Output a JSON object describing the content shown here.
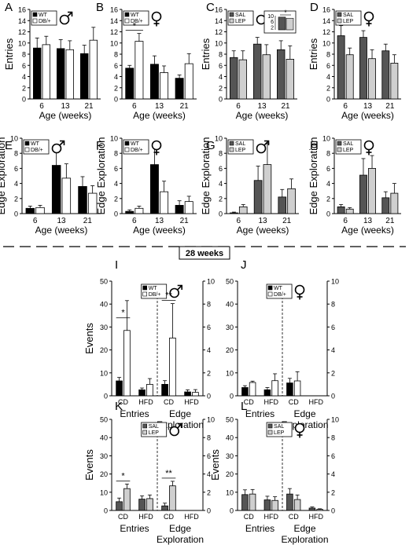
{
  "divider_label": "28 weeks",
  "chart_data": [
    {
      "id": "A",
      "type": "bar",
      "panel_label": "A",
      "ylabel": "Entries",
      "xlabel": "Age (weeks)",
      "categories": [
        "6",
        "13",
        "21"
      ],
      "ylim": [
        0,
        16
      ],
      "yticks": [
        0,
        2,
        4,
        6,
        8,
        10,
        12,
        14,
        16
      ],
      "legend": [
        "WT",
        "DB/+"
      ],
      "sex": "male",
      "series": [
        {
          "name": "WT",
          "values": [
            9.1,
            9.0,
            8.1
          ],
          "errors": [
            1.8,
            1.6,
            1.5
          ]
        },
        {
          "name": "DB/+",
          "values": [
            9.7,
            8.8,
            10.5
          ],
          "errors": [
            1.5,
            1.6,
            2.3
          ]
        }
      ]
    },
    {
      "id": "B",
      "type": "bar",
      "panel_label": "B",
      "ylabel": "",
      "xlabel": "Age (weeks)",
      "categories": [
        "6",
        "13",
        "21"
      ],
      "ylim": [
        0,
        16
      ],
      "yticks": [
        0,
        2,
        4,
        6,
        8,
        10,
        12,
        14,
        16
      ],
      "legend": [
        "WT",
        "DB/+"
      ],
      "sex": "female",
      "series": [
        {
          "name": "WT",
          "values": [
            5.5,
            6.2,
            3.7
          ],
          "errors": [
            0.5,
            1.5,
            0.6
          ]
        },
        {
          "name": "DB/+",
          "values": [
            10.3,
            4.7,
            6.3
          ],
          "errors": [
            1.4,
            1.2,
            1.8
          ]
        }
      ],
      "annotations": [
        {
          "text": "*",
          "between": "6"
        }
      ]
    },
    {
      "id": "C",
      "type": "bar",
      "panel_label": "C",
      "ylabel": "Entries",
      "xlabel": "Age (weeks)",
      "categories": [
        "6",
        "13",
        "21"
      ],
      "ylim": [
        0,
        16
      ],
      "yticks": [
        0,
        2,
        4,
        6,
        8,
        10,
        12,
        14,
        16
      ],
      "legend": [
        "SAL",
        "LEP"
      ],
      "sex": "male",
      "series": [
        {
          "name": "SAL",
          "values": [
            7.4,
            9.8,
            8.8
          ],
          "errors": [
            1.2,
            1.2,
            1.6
          ]
        },
        {
          "name": "LEP",
          "values": [
            7.0,
            7.9,
            7.1
          ],
          "errors": [
            1.6,
            1.8,
            2.4
          ]
        }
      ],
      "inset": {
        "yticks": [
          2,
          6,
          10
        ],
        "ylim": [
          0,
          10
        ],
        "values": [
          9.0,
          8.2
        ],
        "annotation": "*"
      }
    },
    {
      "id": "D",
      "type": "bar",
      "panel_label": "D",
      "ylabel": "Entries",
      "xlabel": "Age (weeks)",
      "categories": [
        "6",
        "13",
        "21"
      ],
      "ylim": [
        0,
        16
      ],
      "yticks": [
        0,
        2,
        4,
        6,
        8,
        10,
        12,
        14,
        16
      ],
      "legend": [
        "SAL",
        "LEP"
      ],
      "sex": "female",
      "series": [
        {
          "name": "SAL",
          "values": [
            11.3,
            11.0,
            8.6
          ],
          "errors": [
            1.8,
            1.2,
            1.2
          ]
        },
        {
          "name": "LEP",
          "values": [
            7.9,
            7.2,
            6.4
          ],
          "errors": [
            1.2,
            1.6,
            1.5
          ]
        }
      ]
    },
    {
      "id": "E",
      "type": "bar",
      "panel_label": "E",
      "ylabel": "Edge Exploration",
      "xlabel": "Age (weeks)",
      "categories": [
        "6",
        "13",
        "21"
      ],
      "ylim": [
        0,
        10
      ],
      "yticks": [
        0,
        2,
        4,
        6,
        8,
        10
      ],
      "legend": [
        "WT",
        "DB/+"
      ],
      "sex": "male",
      "series": [
        {
          "name": "WT",
          "values": [
            0.7,
            6.4,
            3.6
          ],
          "errors": [
            0.3,
            2.8,
            1.3
          ]
        },
        {
          "name": "DB/+",
          "values": [
            0.8,
            4.7,
            2.7
          ],
          "errors": [
            0.3,
            1.9,
            1.0
          ]
        }
      ]
    },
    {
      "id": "F",
      "type": "bar",
      "panel_label": "F",
      "ylabel": "Edge Exploration",
      "xlabel": "Age (weeks)",
      "categories": [
        "6",
        "13",
        "21"
      ],
      "ylim": [
        0,
        10
      ],
      "yticks": [
        0,
        2,
        4,
        6,
        8,
        10
      ],
      "legend": [
        "WT",
        "DB/+"
      ],
      "sex": "female",
      "series": [
        {
          "name": "WT",
          "values": [
            0.3,
            6.5,
            1.1
          ],
          "errors": [
            0.2,
            2.3,
            0.6
          ]
        },
        {
          "name": "DB/+",
          "values": [
            0.7,
            2.9,
            1.6
          ],
          "errors": [
            0.3,
            1.4,
            0.7
          ]
        }
      ]
    },
    {
      "id": "G",
      "type": "bar",
      "panel_label": "G",
      "ylabel": "Edge Exploration",
      "xlabel": "Age (weeks)",
      "categories": [
        "6",
        "13",
        "21"
      ],
      "ylim": [
        0,
        10
      ],
      "yticks": [
        0,
        2,
        4,
        6,
        8,
        10
      ],
      "legend": [
        "SAL",
        "LEP"
      ],
      "sex": "male",
      "series": [
        {
          "name": "SAL",
          "values": [
            0.1,
            4.4,
            2.2
          ],
          "errors": [
            0.1,
            1.9,
            1.0
          ]
        },
        {
          "name": "LEP",
          "values": [
            0.9,
            6.5,
            3.3
          ],
          "errors": [
            0.3,
            2.8,
            1.3
          ]
        }
      ]
    },
    {
      "id": "H",
      "type": "bar",
      "panel_label": "H",
      "ylabel": "Edge Exploration",
      "xlabel": "Age (weeks)",
      "categories": [
        "6",
        "13",
        "21"
      ],
      "ylim": [
        0,
        10
      ],
      "yticks": [
        0,
        2,
        4,
        6,
        8,
        10
      ],
      "legend": [
        "SAL",
        "LEP"
      ],
      "sex": "female",
      "series": [
        {
          "name": "SAL",
          "values": [
            0.9,
            5.1,
            2.1
          ],
          "errors": [
            0.3,
            2.2,
            0.8
          ]
        },
        {
          "name": "LEP",
          "values": [
            0.6,
            6.0,
            2.7
          ],
          "errors": [
            0.2,
            1.7,
            1.3
          ]
        }
      ]
    },
    {
      "id": "I",
      "type": "bar",
      "panel_label": "I",
      "ylabel": "Events",
      "ylim": [
        0,
        50
      ],
      "yticks": [
        0,
        10,
        20,
        30,
        40,
        50
      ],
      "y2lim": [
        0,
        10
      ],
      "y2ticks": [
        0,
        2,
        4,
        6,
        8,
        10
      ],
      "legend": [
        "WT",
        "DB/+"
      ],
      "sex": "male",
      "group_labels": [
        "Entries",
        "Edge Exploration"
      ],
      "categories": [
        "CD",
        "HFD",
        "CD",
        "HFD"
      ],
      "series": [
        {
          "name": "WT",
          "values": [
            6.5,
            2.6,
            5.0,
            1.7
          ],
          "errors": [
            1.5,
            0.8,
            1.6,
            0.9
          ]
        },
        {
          "name": "DB/+",
          "values": [
            28.5,
            5.0,
            25.2,
            1.5
          ],
          "errors": [
            13.0,
            2.5,
            15.0,
            1.2
          ]
        }
      ],
      "annotations": [
        {
          "text": "*",
          "between": "Entries CD"
        },
        {
          "text": "**",
          "between": "Edge Exploration CD"
        }
      ]
    },
    {
      "id": "J",
      "type": "bar",
      "panel_label": "J",
      "ylabel": "",
      "ylim": [
        0,
        50
      ],
      "yticks": [
        0,
        10,
        20,
        30,
        40,
        50
      ],
      "y2lim": [
        0,
        10
      ],
      "y2ticks": [
        0,
        2,
        4,
        6,
        8,
        10
      ],
      "legend": [
        "WT",
        "DB/+"
      ],
      "sex": "female",
      "group_labels": [
        "Entries",
        "Edge Exploration"
      ],
      "categories": [
        "CD",
        "HFD",
        "CD",
        "HFD"
      ],
      "series": [
        {
          "name": "WT",
          "values": [
            3.6,
            2.6,
            5.6,
            0
          ],
          "errors": [
            0.8,
            1.0,
            2.0,
            0
          ]
        },
        {
          "name": "DB/+",
          "values": [
            5.8,
            6.6,
            6.5,
            0
          ],
          "errors": [
            0.6,
            3.0,
            4.0,
            0
          ]
        }
      ]
    },
    {
      "id": "K",
      "type": "bar",
      "panel_label": "K",
      "ylabel": "Events",
      "ylim": [
        0,
        50
      ],
      "yticks": [
        0,
        10,
        20,
        30,
        40,
        50
      ],
      "y2lim": [
        0,
        10
      ],
      "y2ticks": [
        0,
        2,
        4,
        6,
        8,
        10
      ],
      "legend": [
        "SAL",
        "LEP"
      ],
      "sex": "male",
      "group_labels": [
        "Entries",
        "Edge Exploration"
      ],
      "categories": [
        "CD",
        "HFD",
        "CD",
        "HFD"
      ],
      "series": [
        {
          "name": "SAL",
          "values": [
            4.8,
            6.2,
            2.5,
            0
          ],
          "errors": [
            2.0,
            1.8,
            1.5,
            0
          ]
        },
        {
          "name": "LEP",
          "values": [
            12.0,
            6.5,
            13.5,
            0
          ],
          "errors": [
            2.5,
            2.0,
            2.5,
            0
          ]
        }
      ],
      "annotations": [
        {
          "text": "*",
          "between": "Entries CD"
        },
        {
          "text": "**",
          "between": "Edge Exploration CD"
        }
      ]
    },
    {
      "id": "L",
      "type": "bar",
      "panel_label": "L",
      "ylabel": "Events",
      "ylim": [
        0,
        50
      ],
      "yticks": [
        0,
        10,
        20,
        30,
        40,
        50
      ],
      "y2lim": [
        0,
        10
      ],
      "y2ticks": [
        0,
        2,
        4,
        6,
        8,
        10
      ],
      "legend": [
        "SAL",
        "LEP"
      ],
      "sex": "female",
      "group_labels": [
        "Entries",
        "Edge Exploration"
      ],
      "categories": [
        "CD",
        "HFD",
        "CD",
        "HFD"
      ],
      "series": [
        {
          "name": "SAL",
          "values": [
            8.7,
            5.8,
            9.0,
            1.3
          ],
          "errors": [
            2.6,
            2.0,
            3.0,
            0.6
          ]
        },
        {
          "name": "LEP",
          "values": [
            9.0,
            5.5,
            6.0,
            0.6
          ],
          "errors": [
            2.5,
            2.0,
            2.5,
            0.3
          ]
        }
      ]
    }
  ]
}
